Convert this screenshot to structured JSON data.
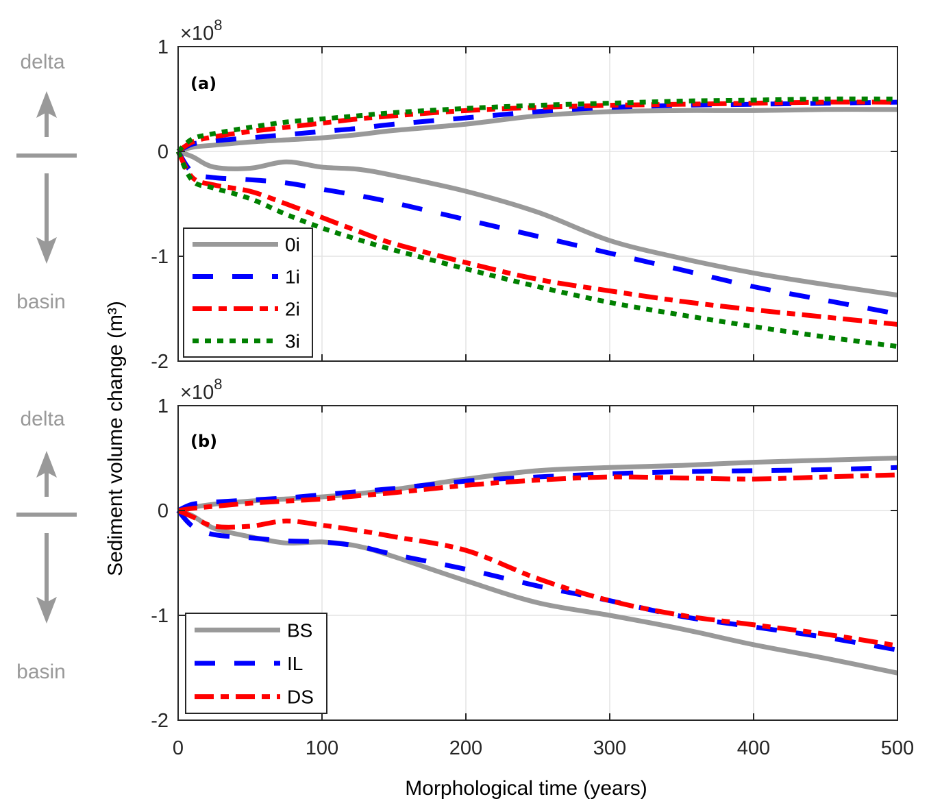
{
  "chart_data": [
    {
      "type": "line",
      "panel_label": "(a)",
      "xlabel": "Morphological time (years)",
      "ylabel": "Sediment volume change (m³)",
      "y_exponent_label": "×10",
      "y_exponent": "8",
      "xlim": [
        0,
        500
      ],
      "ylim": [
        -2,
        1
      ],
      "xticks": [
        "0",
        "100",
        "200",
        "300",
        "400",
        "500"
      ],
      "yticks": [
        "1",
        "0",
        "-1",
        "-2"
      ],
      "grid": true,
      "legend_position": "bottom-left",
      "annotations": {
        "up": "delta",
        "down": "basin"
      },
      "x": [
        0,
        10,
        25,
        50,
        75,
        100,
        125,
        150,
        200,
        250,
        300,
        350,
        400,
        450,
        500
      ],
      "series": [
        {
          "name": "0i",
          "style": "solid",
          "color": "#999999",
          "group": "delta",
          "values": [
            0,
            0.04,
            0.06,
            0.09,
            0.11,
            0.13,
            0.16,
            0.2,
            0.26,
            0.34,
            0.38,
            0.39,
            0.39,
            0.4,
            0.4
          ]
        },
        {
          "name": "0i",
          "style": "solid",
          "color": "#999999",
          "group": "basin",
          "values": [
            0,
            -0.05,
            -0.15,
            -0.16,
            -0.1,
            -0.15,
            -0.17,
            -0.23,
            -0.38,
            -0.58,
            -0.85,
            -1.02,
            -1.16,
            -1.27,
            -1.37
          ]
        },
        {
          "name": "1i",
          "style": "dashed",
          "color": "#0000ff",
          "group": "delta",
          "values": [
            0,
            0.07,
            0.1,
            0.13,
            0.16,
            0.19,
            0.22,
            0.26,
            0.32,
            0.38,
            0.42,
            0.44,
            0.45,
            0.46,
            0.47
          ]
        },
        {
          "name": "1i",
          "style": "dashed",
          "color": "#0000ff",
          "group": "basin",
          "values": [
            0,
            -0.2,
            -0.25,
            -0.27,
            -0.3,
            -0.36,
            -0.42,
            -0.49,
            -0.65,
            -0.81,
            -0.97,
            -1.13,
            -1.29,
            -1.42,
            -1.55
          ]
        },
        {
          "name": "2i",
          "style": "dashdot",
          "color": "#ff0000",
          "group": "delta",
          "values": [
            0,
            0.09,
            0.14,
            0.19,
            0.23,
            0.27,
            0.31,
            0.34,
            0.39,
            0.42,
            0.44,
            0.45,
            0.46,
            0.47,
            0.47
          ]
        },
        {
          "name": "2i",
          "style": "dashdot",
          "color": "#ff0000",
          "group": "basin",
          "values": [
            0,
            -0.25,
            -0.32,
            -0.38,
            -0.5,
            -0.63,
            -0.76,
            -0.88,
            -1.06,
            -1.22,
            -1.33,
            -1.43,
            -1.51,
            -1.58,
            -1.65
          ]
        },
        {
          "name": "3i",
          "style": "dotted",
          "color": "#008000",
          "group": "delta",
          "values": [
            0,
            0.12,
            0.17,
            0.23,
            0.28,
            0.31,
            0.34,
            0.37,
            0.41,
            0.44,
            0.46,
            0.48,
            0.49,
            0.5,
            0.5
          ]
        },
        {
          "name": "3i",
          "style": "dotted",
          "color": "#008000",
          "group": "basin",
          "values": [
            0,
            -0.28,
            -0.35,
            -0.45,
            -0.6,
            -0.73,
            -0.84,
            -0.94,
            -1.12,
            -1.29,
            -1.44,
            -1.56,
            -1.67,
            -1.77,
            -1.86
          ]
        }
      ],
      "legend": [
        {
          "name": "0i",
          "style": "solid",
          "color": "#999999"
        },
        {
          "name": "1i",
          "style": "dashed",
          "color": "#0000ff"
        },
        {
          "name": "2i",
          "style": "dashdot",
          "color": "#ff0000"
        },
        {
          "name": "3i",
          "style": "dotted",
          "color": "#008000"
        }
      ]
    },
    {
      "type": "line",
      "panel_label": "(b)",
      "xlabel": "Morphological time (years)",
      "ylabel": "Sediment volume change (m³)",
      "y_exponent_label": "×10",
      "y_exponent": "8",
      "xlim": [
        0,
        500
      ],
      "ylim": [
        -2,
        1
      ],
      "xticks": [
        "0",
        "100",
        "200",
        "300",
        "400",
        "500"
      ],
      "yticks": [
        "1",
        "0",
        "-1",
        "-2"
      ],
      "grid": true,
      "legend_position": "bottom-left",
      "annotations": {
        "up": "delta",
        "down": "basin"
      },
      "x": [
        0,
        10,
        25,
        50,
        75,
        100,
        125,
        150,
        200,
        250,
        300,
        350,
        400,
        450,
        500
      ],
      "series": [
        {
          "name": "BS",
          "style": "solid",
          "color": "#999999",
          "group": "delta",
          "values": [
            0,
            0.03,
            0.06,
            0.09,
            0.11,
            0.13,
            0.16,
            0.2,
            0.3,
            0.38,
            0.41,
            0.43,
            0.46,
            0.48,
            0.5
          ]
        },
        {
          "name": "BS",
          "style": "solid",
          "color": "#999999",
          "group": "basin",
          "values": [
            0,
            -0.05,
            -0.17,
            -0.25,
            -0.31,
            -0.3,
            -0.34,
            -0.44,
            -0.67,
            -0.88,
            -1.0,
            -1.13,
            -1.28,
            -1.41,
            -1.55
          ]
        },
        {
          "name": "IL",
          "style": "dashed",
          "color": "#0000ff",
          "group": "delta",
          "values": [
            0,
            0.06,
            0.08,
            0.1,
            0.12,
            0.15,
            0.18,
            0.21,
            0.28,
            0.32,
            0.35,
            0.37,
            0.38,
            0.39,
            0.41
          ]
        },
        {
          "name": "IL",
          "style": "dashed",
          "color": "#0000ff",
          "group": "basin",
          "values": [
            0,
            -0.15,
            -0.23,
            -0.26,
            -0.29,
            -0.3,
            -0.34,
            -0.42,
            -0.56,
            -0.72,
            -0.86,
            -1.01,
            -1.11,
            -1.21,
            -1.33
          ]
        },
        {
          "name": "DS",
          "style": "dashdot",
          "color": "#ff0000",
          "group": "delta",
          "values": [
            0,
            0.02,
            0.04,
            0.07,
            0.09,
            0.11,
            0.14,
            0.17,
            0.24,
            0.29,
            0.32,
            0.31,
            0.3,
            0.32,
            0.34
          ]
        },
        {
          "name": "DS",
          "style": "dashdot",
          "color": "#ff0000",
          "group": "basin",
          "values": [
            0,
            -0.06,
            -0.15,
            -0.15,
            -0.1,
            -0.14,
            -0.19,
            -0.25,
            -0.38,
            -0.65,
            -0.86,
            -1.0,
            -1.09,
            -1.18,
            -1.29
          ]
        }
      ],
      "legend": [
        {
          "name": "BS",
          "style": "solid",
          "color": "#999999"
        },
        {
          "name": "IL",
          "style": "dashed",
          "color": "#0000ff"
        },
        {
          "name": "DS",
          "style": "dashdot",
          "color": "#ff0000"
        }
      ]
    }
  ]
}
